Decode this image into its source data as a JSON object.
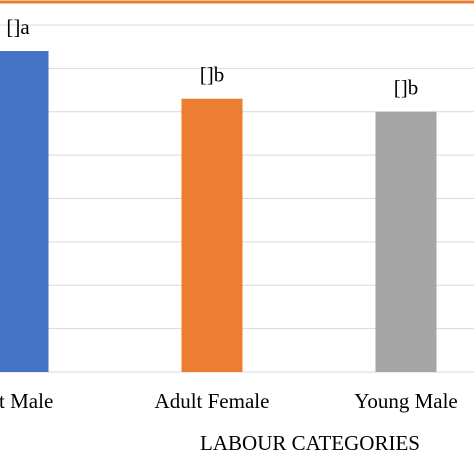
{
  "chart_data": {
    "type": "bar",
    "x_label": "LABOUR CATEGORIES",
    "categories": [
      "ult Male",
      "Adult Female",
      "Young Male"
    ],
    "values": [
      7.4,
      6.3,
      6.0
    ],
    "value_labels": [
      "[]a",
      "[]b",
      "[]b"
    ],
    "colors": [
      "#4472c4",
      "#ed7d31",
      "#a5a5a5"
    ],
    "ylim": [
      0,
      8
    ],
    "yticks": [
      0,
      1,
      2,
      3,
      4,
      5,
      6,
      7,
      8
    ],
    "grid": true
  }
}
